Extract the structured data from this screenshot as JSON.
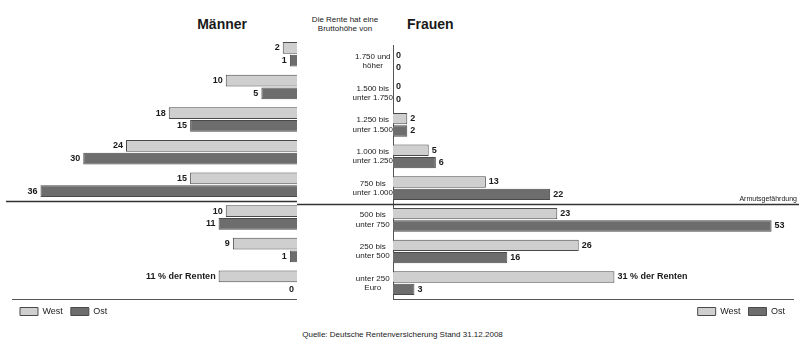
{
  "chart_data": [
    {
      "type": "bar",
      "title": "Männer",
      "orientation": "horizontal",
      "data_labels": true,
      "tick_labels": false,
      "grid": false,
      "legend": "bottom",
      "categories": [
        "1.750 und höher",
        "1.500 bis unter 1.750",
        "1.250 bis unter 1.500",
        "1.000 bis unter 1.250",
        "750 bis unter 1.000",
        "500 bis unter 750",
        "250 bis unter 500",
        "unter 250 Euro"
      ],
      "xlim": [
        0,
        40
      ],
      "series": [
        {
          "name": "West",
          "color": "#cfcfcf",
          "values": [
            2,
            10,
            18,
            24,
            15,
            10,
            9,
            11
          ],
          "value_labels": [
            "2",
            "10",
            "18",
            "24",
            "15",
            "10",
            "9",
            "11 % der Renten"
          ]
        },
        {
          "name": "Ost",
          "color": "#6d6d6d",
          "values": [
            1,
            5,
            15,
            30,
            36,
            11,
            1,
            0
          ]
        }
      ]
    },
    {
      "type": "bar",
      "title": "Frauen",
      "orientation": "horizontal",
      "data_labels": true,
      "tick_labels": "y",
      "grid": false,
      "legend": "bottom",
      "categories": [
        "1.750 und höher",
        "1.500 bis unter 1.750",
        "1.250 bis unter 1.500",
        "1.000 bis unter 1.250",
        "750 bis unter 1.000",
        "500 bis unter 750",
        "250 bis unter 500",
        "unter 250 Euro"
      ],
      "xlim": [
        0,
        56
      ],
      "series": [
        {
          "name": "West",
          "color": "#cfcfcf",
          "values": [
            0,
            0,
            2,
            5,
            13,
            23,
            26,
            31
          ],
          "value_labels": [
            "0",
            "0",
            "2",
            "5",
            "13",
            "23",
            "26",
            "31 % der Renten"
          ]
        },
        {
          "name": "Ost",
          "color": "#6d6d6d",
          "values": [
            0,
            0,
            2,
            6,
            22,
            53,
            16,
            3
          ]
        }
      ]
    }
  ],
  "heading": "Die Rente hat eine Bruttohöhe von",
  "annotations": [
    {
      "text": "Armutsgefährdung",
      "between": [
        "750 bis unter 1.000",
        "500 bis unter 750"
      ]
    }
  ],
  "source": "Quelle: Deutsche Rentenversicherung Stand 31.12.2008"
}
